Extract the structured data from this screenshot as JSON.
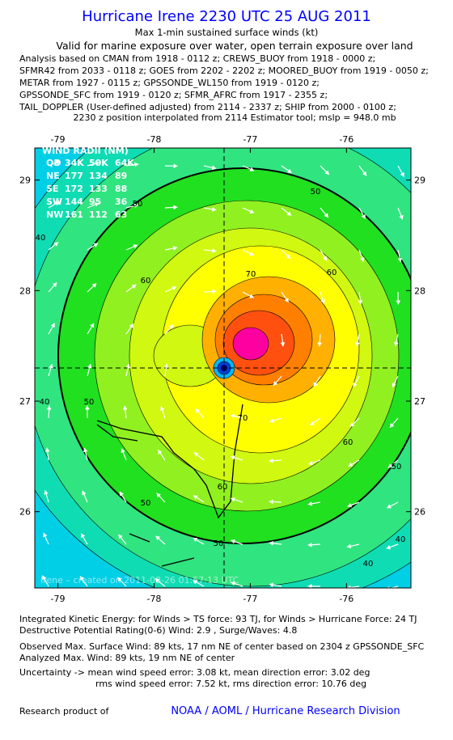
{
  "header": {
    "title": "Hurricane Irene 2230 UTC 25 AUG 2011",
    "subtitle": "Max 1-min sustained surface winds (kt)",
    "validity": "Valid for marine exposure over water, open terrain exposure over land",
    "analysis": [
      "Analysis based on CMAN from 1918 - 0112 z; CREWS_BUOY from 1918 - 0000 z;",
      "SFMR42 from 2033 - 0118 z; GOES from 2202 - 2202 z; MOORED_BUOY from 1919 - 0050 z;",
      "METAR from 1927 - 0115 z; GPSSONDE_WL150 from 1919 - 0120 z;",
      "GPSSONDE_SFC from 1919 - 0120 z; SFMR_AFRC from 1917 - 2355 z;",
      "TAIL_DOPPLER (User-defined adjusted) from 2114 - 2337 z; SHIP from 2000 - 0100 z;"
    ],
    "position": "2230 z position interpolated from 2114 Estimator tool; mslp = 948.0 mb"
  },
  "chart_data": {
    "type": "map",
    "xlim": [
      -79.24,
      -75.33
    ],
    "ylim": [
      25.31,
      29.29
    ],
    "xticks": [
      -79,
      -78,
      -77,
      -76
    ],
    "yticks": [
      26,
      27,
      28,
      29
    ],
    "contour_labels": [
      50,
      40,
      50,
      40,
      60,
      70,
      60,
      50,
      40,
      50,
      60,
      70,
      60,
      50,
      40,
      50
    ],
    "watermark": "Irene – created on 2011-08-26 01:57:13 UTC",
    "wind_radii": {
      "title": "WIND RADII (NM)",
      "columns": [
        "QD",
        "34K",
        "50K",
        "64K"
      ],
      "rows": [
        [
          "NE",
          "177",
          "134",
          "89"
        ],
        [
          "SE",
          "172",
          "133",
          "88"
        ],
        [
          "SW",
          "144",
          "95",
          "36"
        ],
        [
          "NW",
          "161",
          "112",
          "63"
        ]
      ]
    }
  },
  "footer": {
    "lines": [
      "Integrated Kinetic Energy:  for Winds > TS force: 93 TJ,  for Winds > Hurricane Force: 24 TJ",
      "Destructive Potential Rating(0-6)   Wind: 2.9 , Surge/Waves: 4.8",
      "Observed Max. Surface Wind: 89 kts, 17 nm NE of center based on 2304 z GPSSONDE_SFC",
      "Analyzed Max. Wind: 89 kts, 19 nm NE of center",
      "Uncertainty -> mean wind speed error: 3.08 kt,   mean direction error: 3.02 deg",
      "rms wind speed error: 7.52 kt,   rms direction error: 10.76 deg"
    ],
    "research": "Research product of",
    "org": "NOAA / AOML / Hurricane Research Division"
  }
}
